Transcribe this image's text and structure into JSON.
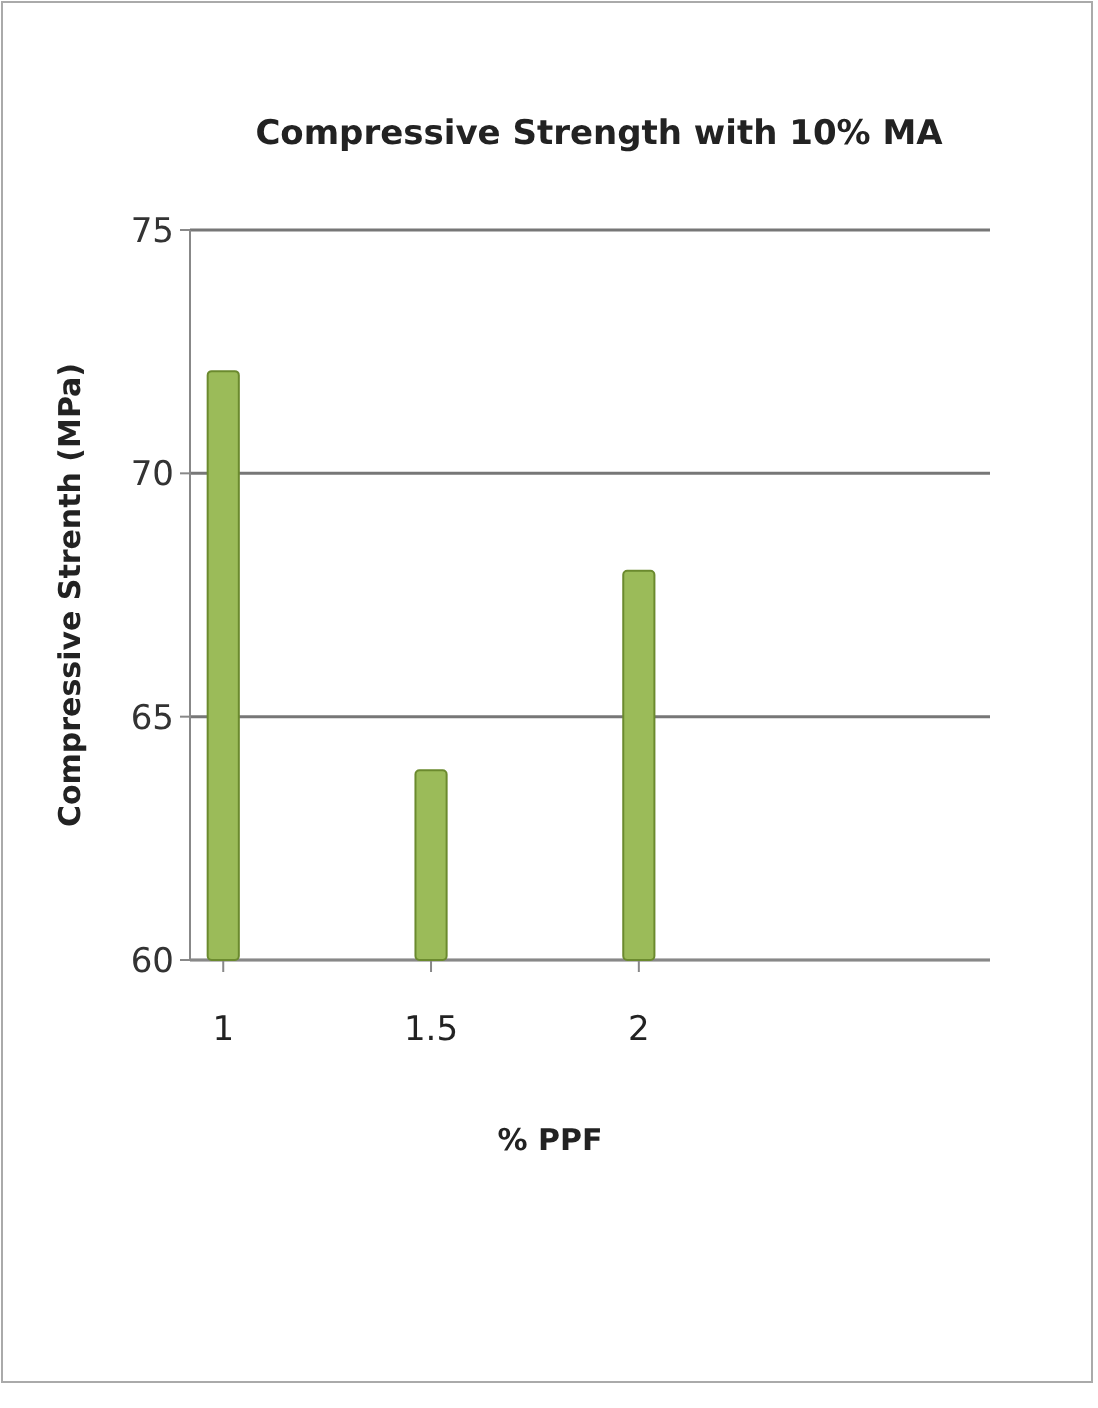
{
  "chart_data": {
    "type": "bar",
    "title": "Compressive Strength with 10% MA",
    "xlabel": "% PPF",
    "ylabel": "Compressive Strenth (MPa)",
    "categories": [
      "1",
      "1.5",
      "2"
    ],
    "values": [
      72.1,
      63.9,
      68.0
    ],
    "color": "#9bbb59",
    "ylim": [
      60,
      75
    ],
    "yticks": [
      60,
      65,
      70,
      75
    ],
    "grid": "y"
  }
}
